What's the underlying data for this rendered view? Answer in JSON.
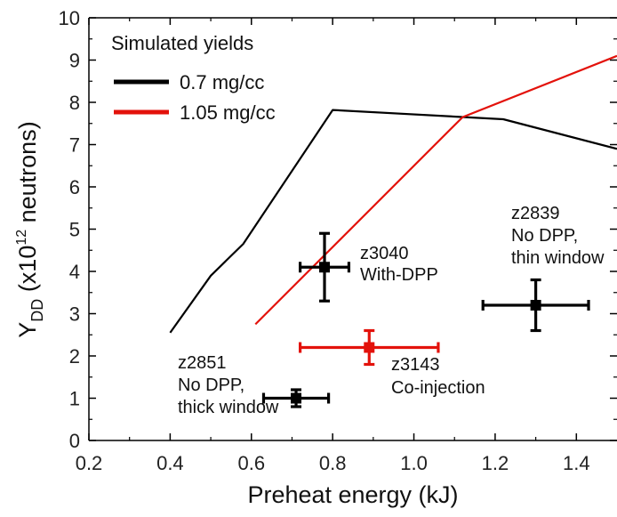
{
  "chart_data": {
    "type": "line",
    "xlabel": "Preheat energy (kJ)",
    "ylabel": {
      "main": "Y",
      "sub": "DD",
      "mid": " (x10",
      "sup": "12",
      "tail": " neutrons)"
    },
    "xlim": [
      0.2,
      1.5
    ],
    "ylim": [
      0,
      10
    ],
    "xticks": [
      "0.2",
      "0.4",
      "0.6",
      "0.8",
      "1.0",
      "1.2",
      "1.4"
    ],
    "yticks": [
      "0",
      "1",
      "2",
      "3",
      "4",
      "5",
      "6",
      "7",
      "8",
      "9",
      "10"
    ],
    "legend": {
      "title": "Simulated yields",
      "placement": "top-left"
    },
    "series": [
      {
        "name": "0.7 mg/cc",
        "color": "#000000",
        "x": [
          0.4,
          0.5,
          0.58,
          0.8,
          1.22,
          1.5
        ],
        "y": [
          2.55,
          3.9,
          4.65,
          7.82,
          7.6,
          6.9
        ]
      },
      {
        "name": "1.05 mg/cc",
        "color": "#e3120b",
        "x": [
          0.61,
          1.12,
          1.5
        ],
        "y": [
          2.75,
          7.65,
          9.1
        ]
      }
    ],
    "points": [
      {
        "x": 0.78,
        "y": 4.1,
        "xerr": 0.06,
        "yerr": 0.8,
        "color": "#000000",
        "label": [
          "z3040",
          "With-DPP"
        ]
      },
      {
        "x": 1.3,
        "y": 3.2,
        "xerr": 0.13,
        "yerr": 0.6,
        "color": "#000000",
        "label": [
          "z2839",
          "No DPP,",
          "thin window"
        ]
      },
      {
        "x": 0.89,
        "y": 2.2,
        "xerr": 0.17,
        "yerr": 0.4,
        "color": "#e3120b",
        "label": [
          "z3143",
          "Co-injection"
        ]
      },
      {
        "x": 0.71,
        "y": 1.0,
        "xerr": 0.08,
        "yerr": 0.2,
        "color": "#000000",
        "label": [
          "z2851",
          "No DPP,",
          "thick window"
        ]
      }
    ]
  }
}
